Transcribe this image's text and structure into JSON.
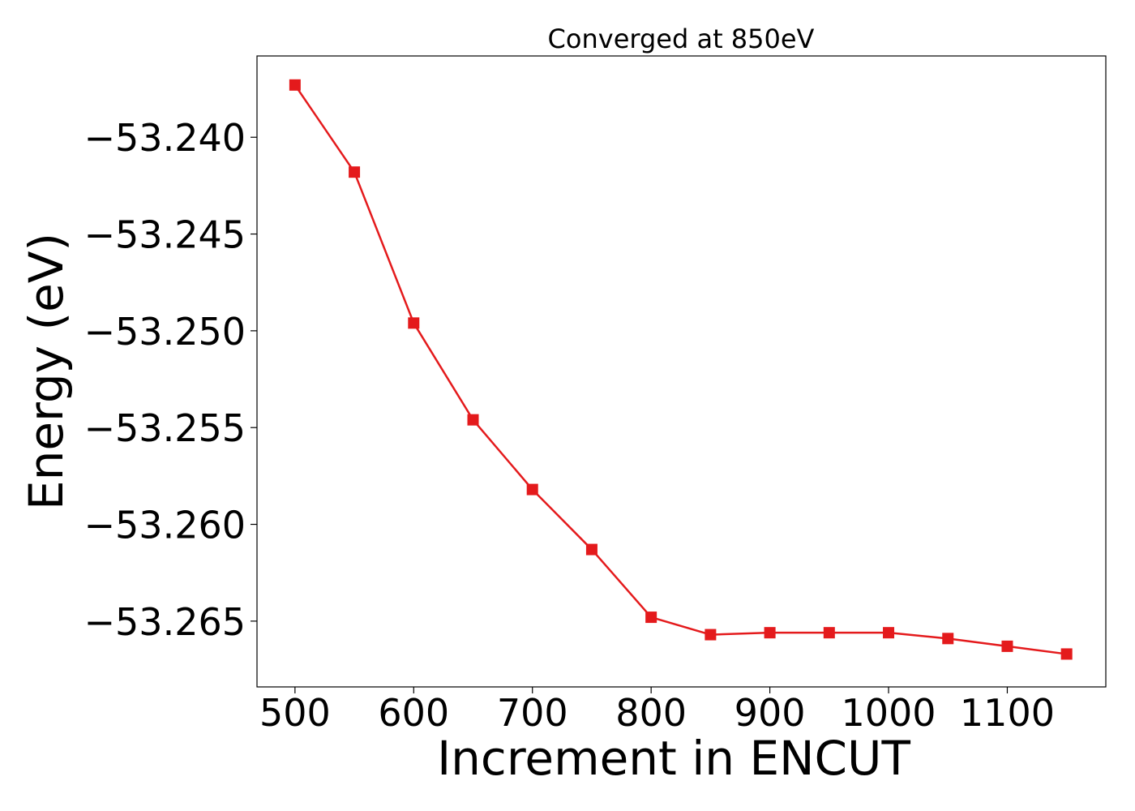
{
  "chart_data": {
    "type": "line",
    "title": "Converged at 850eV",
    "xlabel": "Increment in ENCUT",
    "ylabel": "Energy (eV)",
    "x": [
      500,
      550,
      600,
      650,
      700,
      750,
      800,
      850,
      900,
      950,
      1000,
      1050,
      1100,
      1150
    ],
    "series": [
      {
        "values": [
          -53.2373,
          -53.2418,
          -53.2496,
          -53.2546,
          -53.2582,
          -53.2613,
          -53.2648,
          -53.2657,
          -53.2656,
          -53.2656,
          -53.2656,
          -53.2659,
          -53.2663,
          -53.2667
        ],
        "color": "#e41a1c",
        "marker": "square"
      }
    ],
    "xlim": [
      468,
      1183
    ],
    "ylim": [
      -53.2684,
      -53.2358
    ],
    "xticks": [
      500,
      600,
      700,
      800,
      900,
      1000,
      1100
    ],
    "xtick_labels": [
      "500",
      "600",
      "700",
      "800",
      "900",
      "1000",
      "1100"
    ],
    "yticks": [
      -53.24,
      -53.245,
      -53.25,
      -53.255,
      -53.26,
      -53.265
    ],
    "ytick_labels": [
      "−53.240",
      "−53.245",
      "−53.250",
      "−53.255",
      "−53.260",
      "−53.265"
    ],
    "grid": false,
    "legend": "none"
  }
}
